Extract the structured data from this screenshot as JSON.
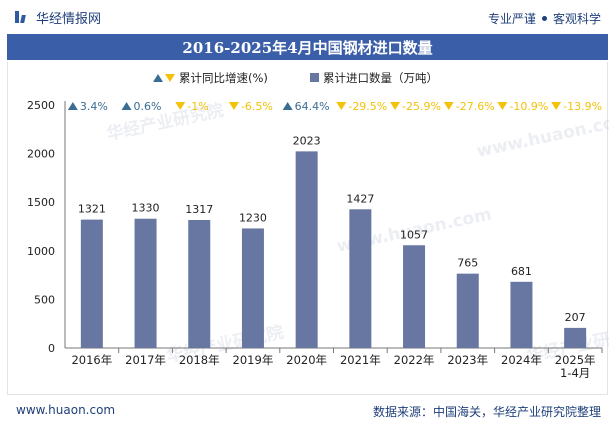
{
  "header": {
    "logo_text": "华经情报网",
    "tagline_left": "专业严谨",
    "tagline_right": "客观科学"
  },
  "footer": {
    "site": "www.huaon.com",
    "source": "数据来源：中国海关，华经产业研究院整理"
  },
  "watermarks": [
    "华经产业研究院",
    "www.huaon.com"
  ],
  "colors": {
    "bar": "#6877a1",
    "up": "#3a6d93",
    "down": "#f3c20a",
    "title_bg": "#3b5ea8",
    "brand": "#1f3f7a"
  },
  "chart_data": {
    "type": "bar",
    "title": "2016-2025年4月中国钢材进口数量",
    "categories": [
      "2016年",
      "2017年",
      "2018年",
      "2019年",
      "2020年",
      "2021年",
      "2022年",
      "2023年",
      "2024年",
      "2025年\n1-4月"
    ],
    "series": [
      {
        "name": "累计进口数量（万吨）",
        "values": [
          1321,
          1330,
          1317,
          1230,
          2023,
          1427,
          1057,
          765,
          681,
          207
        ]
      }
    ],
    "growth": {
      "name": "累计同比增速(%)",
      "labels": [
        "3.4%",
        "0.6%",
        "-1%",
        "-6.5%",
        "64.4%",
        "-29.5%",
        "-25.9%",
        "-27.6%",
        "-10.9%",
        "-13.9%"
      ],
      "direction": [
        "up",
        "up",
        "down",
        "down",
        "up",
        "down",
        "down",
        "down",
        "down",
        "down"
      ]
    },
    "ylim": [
      0,
      2500
    ],
    "yticks": [
      0,
      500,
      1000,
      1500,
      2000,
      2500
    ],
    "legend": {
      "growth_label": "累计同比增速(%)",
      "bar_label": "累计进口数量（万吨）"
    },
    "legend_position": "top-center"
  }
}
